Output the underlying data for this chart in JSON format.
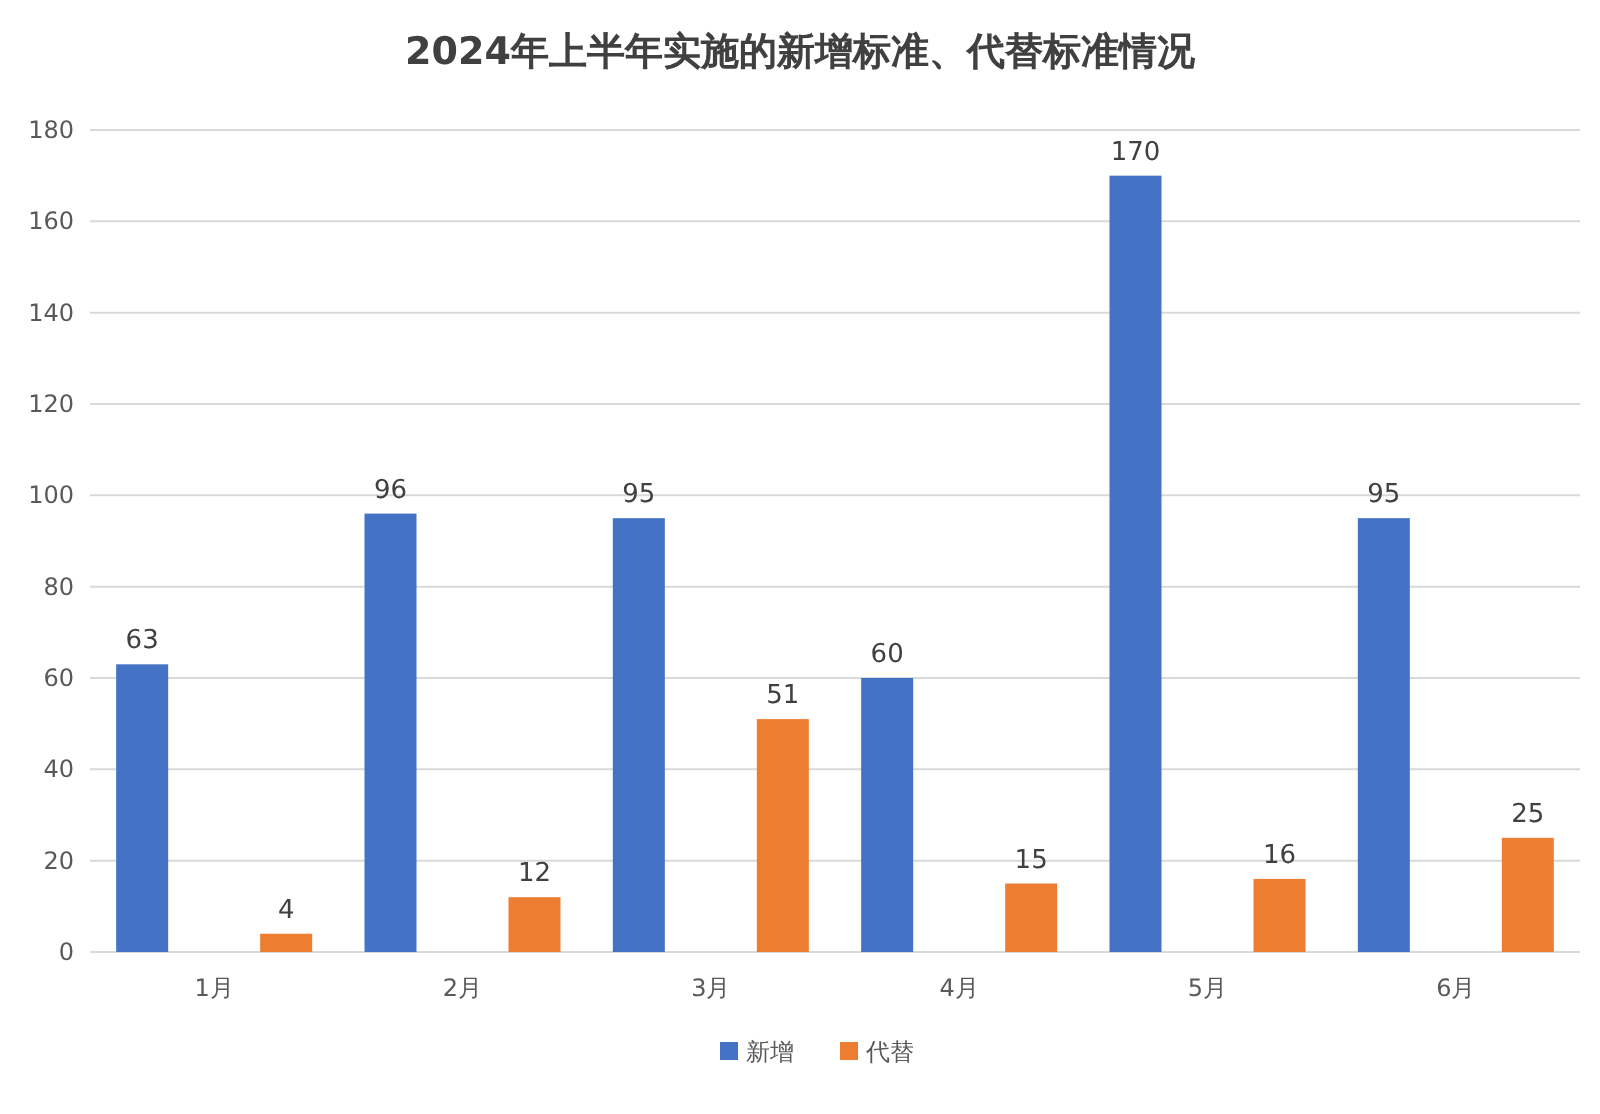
{
  "chart_data": {
    "type": "bar",
    "title": "2024年上半年实施的新增标准、代替标准情况",
    "categories": [
      "1月",
      "2月",
      "3月",
      "4月",
      "5月",
      "6月"
    ],
    "series": [
      {
        "name": "新增",
        "color": "#4472c4",
        "values": [
          63,
          96,
          95,
          60,
          170,
          95
        ]
      },
      {
        "name": "代替",
        "color": "#ed7d31",
        "values": [
          4,
          12,
          51,
          15,
          16,
          25
        ]
      }
    ],
    "ylim": [
      0,
      180
    ],
    "yticks": [
      0,
      20,
      40,
      60,
      80,
      100,
      120,
      140,
      160,
      180
    ],
    "grid": "y",
    "legend": "bottom",
    "data_labels": true
  }
}
